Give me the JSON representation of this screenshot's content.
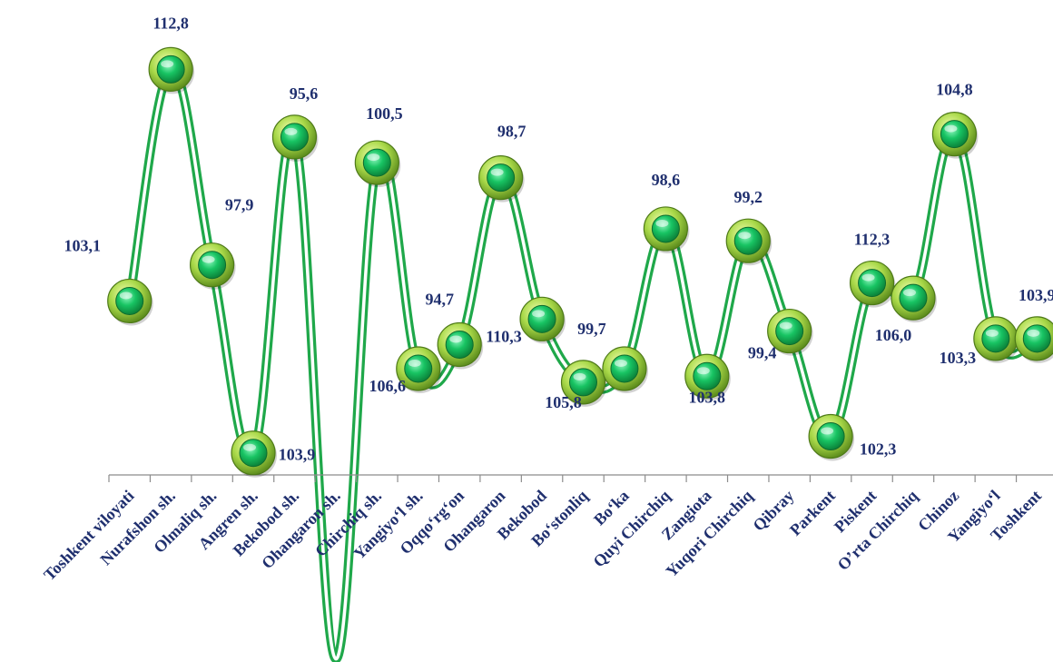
{
  "chart_data": {
    "type": "line",
    "title": "",
    "xlabel": "",
    "ylabel": "",
    "categories": [
      "Toshkent viloyati",
      "Nurafshon sh.",
      "Olmaliq sh.",
      "Angren sh.",
      "Bekobod sh.",
      "Ohangaron sh.",
      "Chirchiq sh.",
      "Yangiyo‘l sh.",
      "Oqqo‘rg‘on",
      "Ohangaron",
      "Bekobod",
      "Bo‘stonliq",
      "Bo‘ka",
      "Quyi Chirchiq",
      "Zangiota",
      "Yuqori Chirchiq",
      "Qibray",
      "Parkent",
      "Piskent",
      "O’rta Chirchiq",
      "Chinoz",
      "Yangiyo‘l",
      "Toshkent"
    ],
    "series": [
      {
        "values": [
          103.1,
          112.8,
          97.9,
          103.9,
          95.6,
          80.0,
          100.5,
          106.6,
          94.7,
          98.7,
          110.3,
          105.8,
          99.7,
          98.6,
          103.8,
          99.2,
          99.4,
          102.3,
          112.3,
          106.0,
          104.8,
          103.3,
          103.9
        ],
        "labels": [
          "103,1",
          "112,8",
          "97,9",
          "103,9",
          "95,6",
          "",
          "100,5",
          "106,6",
          "94,7",
          "98,7",
          "110,3",
          "105,8",
          "99,7",
          "98,6",
          "103,8",
          "99,2",
          "99,4",
          "102,3",
          "112,3",
          "106,0",
          "104,8",
          "103,3",
          "103,9"
        ],
        "plot_y": [
          103.8,
          119.2,
          106.2,
          93.7,
          114.7,
          80.0,
          113.0,
          99.3,
          100.9,
          112.0,
          102.6,
          98.4,
          99.3,
          108.6,
          98.8,
          107.8,
          101.8,
          94.8,
          105.0,
          104.0,
          114.9,
          101.3,
          101.3
        ]
      }
    ],
    "ylim": [
      90,
      122
    ],
    "axis": "x-only",
    "grid": false,
    "legend": "none",
    "colors": {
      "line": "#1fa84a",
      "label": "#1f2f6e",
      "marker_ring": "#8ccf3a",
      "marker_core": "#18b05a"
    }
  }
}
